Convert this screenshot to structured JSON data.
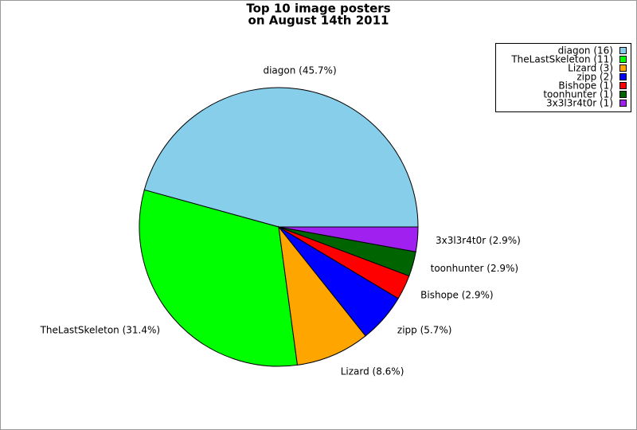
{
  "chart_data": {
    "type": "pie",
    "title": [
      "Top 10 image posters",
      "on August 14th 2011"
    ],
    "categories": [
      "diagon",
      "TheLastSkeleton",
      "Lizard",
      "zipp",
      "Bishope",
      "toonhunter",
      "3x3l3r4t0r"
    ],
    "values": [
      16,
      11,
      3,
      2,
      1,
      1,
      1
    ],
    "legend_labels": [
      "diagon (16)",
      "TheLastSkeleton (11)",
      "Lizard (3)",
      "zipp (2)",
      "Bishope (1)",
      "toonhunter (1)",
      "3x3l3r4t0r (1)"
    ],
    "slice_labels": [
      "diagon (45.7%)",
      "TheLastSkeleton (31.4%)",
      "Lizard (8.6%)",
      "zipp (5.7%)",
      "Bishope (2.9%)",
      "toonhunter (2.9%)",
      "3x3l3r4t0r (2.9%)"
    ],
    "colors": [
      "#87ceeb",
      "#00ff00",
      "#ffa500",
      "#0000ff",
      "#ff0000",
      "#006400",
      "#a020f0"
    ],
    "legend": "upper right"
  }
}
